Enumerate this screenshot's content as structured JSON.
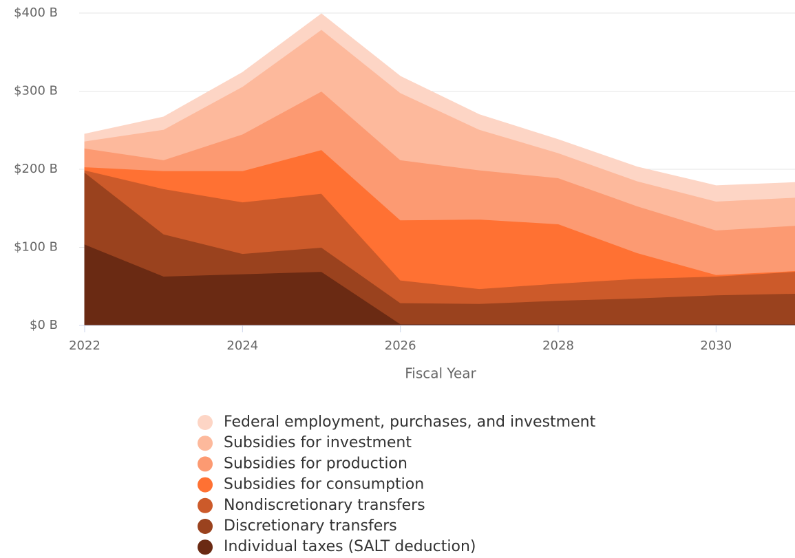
{
  "chart_data": {
    "type": "stacked-area",
    "x": [
      2022,
      2023,
      2024,
      2025,
      2026,
      2027,
      2028,
      2029,
      2030,
      2031
    ],
    "xlim": [
      2022,
      2031
    ],
    "xticks": [
      2022,
      2024,
      2026,
      2028,
      2030
    ],
    "ylim": [
      0,
      400
    ],
    "yticks": [
      {
        "value": 0,
        "label": "$0 B"
      },
      {
        "value": 100,
        "label": "$100 B"
      },
      {
        "value": 200,
        "label": "$200 B"
      },
      {
        "value": 300,
        "label": "$300 B"
      },
      {
        "value": 400,
        "label": "$400 B"
      }
    ],
    "x_label": "Fiscal Year",
    "grid": true,
    "legend": "bottom",
    "series": [
      {
        "name": "Federal employment, purchases, and investment",
        "color": "#fdd5c5",
        "values": [
          9,
          16,
          18,
          20,
          21,
          19,
          17,
          18,
          20,
          19
        ]
      },
      {
        "name": "Subsidies for investment",
        "color": "#fdb99c",
        "values": [
          9,
          39,
          61,
          79,
          86,
          52,
          32,
          32,
          37,
          36
        ]
      },
      {
        "name": "Subsidies for production",
        "color": "#fc9a72",
        "values": [
          24,
          14,
          47,
          75,
          77,
          63,
          59,
          60,
          57,
          58
        ]
      },
      {
        "name": "Subsidies for consumption",
        "color": "#ff7133",
        "values": [
          4,
          23,
          40,
          56,
          77,
          89,
          76,
          33,
          2,
          1
        ]
      },
      {
        "name": "Nondiscretionary transfers",
        "color": "#cc5a2a",
        "values": [
          3,
          58,
          66,
          69,
          29,
          19,
          22,
          25,
          24,
          28
        ]
      },
      {
        "name": "Discretionary transfers",
        "color": "#9a421e",
        "values": [
          92,
          54,
          26,
          31,
          27,
          26,
          30,
          33,
          37,
          39
        ]
      },
      {
        "name": "Individual taxes (SALT deduction)",
        "color": "#6a2a13",
        "values": [
          104,
          63,
          66,
          69,
          2,
          2,
          2,
          2,
          2,
          2
        ]
      }
    ]
  }
}
